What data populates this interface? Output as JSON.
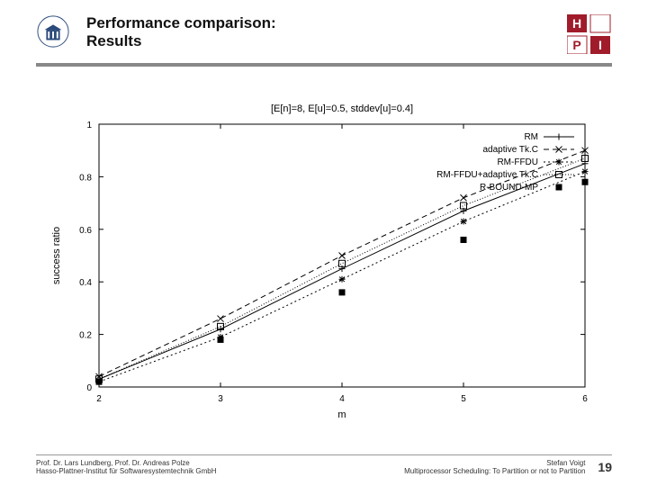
{
  "header": {
    "title1": "Performance comparison:",
    "title2": "Results"
  },
  "chart": {
    "title": "[E[n]=8, E[u]=0.5, stddev[u]=0.4]",
    "title_fontsize": 11,
    "xlabel": "m",
    "ylabel": "success ratio",
    "label_fontsize": 11,
    "tick_fontsize": 10,
    "xlim": [
      2,
      6
    ],
    "ylim": [
      0,
      1
    ],
    "xticks": [
      2,
      3,
      4,
      5,
      6
    ],
    "yticks": [
      0,
      0.2,
      0.4,
      0.6,
      0.8,
      1
    ],
    "background": "#ffffff",
    "axis_color": "#000000",
    "tick_len": 5,
    "legend": {
      "x_anchor": "right",
      "y_anchor": "top",
      "fontsize": 10,
      "border": "#000000"
    },
    "series": [
      {
        "name": "RM",
        "marker": "plus",
        "dash": "",
        "color": "#000000",
        "pts": [
          [
            2,
            0.03
          ],
          [
            3,
            0.22
          ],
          [
            4,
            0.45
          ],
          [
            5,
            0.67
          ],
          [
            6,
            0.85
          ]
        ]
      },
      {
        "name": "adaptive Tk.C",
        "marker": "x",
        "dash": "6,4",
        "color": "#000000",
        "pts": [
          [
            2,
            0.04
          ],
          [
            3,
            0.26
          ],
          [
            4,
            0.5
          ],
          [
            5,
            0.72
          ],
          [
            6,
            0.9
          ]
        ]
      },
      {
        "name": "RM-FFDU",
        "marker": "star",
        "dash": "2,3",
        "color": "#000000",
        "pts": [
          [
            2,
            0.02
          ],
          [
            3,
            0.19
          ],
          [
            4,
            0.41
          ],
          [
            5,
            0.63
          ],
          [
            6,
            0.82
          ]
        ]
      },
      {
        "name": "RM-FFDU+adaptive Tk.C",
        "marker": "sq-open",
        "dash": "1,2",
        "color": "#000000",
        "pts": [
          [
            2,
            0.03
          ],
          [
            3,
            0.23
          ],
          [
            4,
            0.47
          ],
          [
            5,
            0.69
          ],
          [
            6,
            0.87
          ]
        ]
      },
      {
        "name": "R-BOUND-MP",
        "marker": "sq-fill",
        "dash": "",
        "color": "#000000",
        "line": false,
        "pts": [
          [
            2,
            0.02
          ],
          [
            3,
            0.18
          ],
          [
            4,
            0.36
          ],
          [
            5,
            0.56
          ],
          [
            6,
            0.78
          ]
        ]
      }
    ]
  },
  "footer": {
    "left1": "Prof. Dr. Lars Lundberg,  Prof. Dr. Andreas Polze",
    "left2": "Hasso-Plattner-Institut für Softwaresystemtechnik GmbH",
    "right1": "Stefan Voigt",
    "right2": "Multiprocessor Scheduling: To Partition or not to Partition",
    "page": "19"
  },
  "colors": {
    "hpi_red": "#a01c2a",
    "rule": "#888888"
  }
}
